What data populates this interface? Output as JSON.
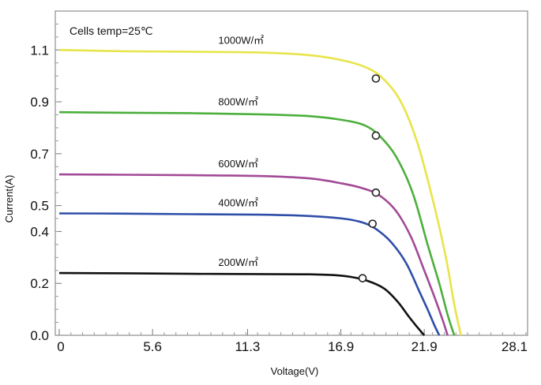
{
  "chart_data": {
    "type": "line",
    "title": "",
    "annotation": "Cells temp=25℃",
    "xlabel": "Voltage(V)",
    "ylabel": "Current(A)",
    "xlim": [
      0,
      28.1
    ],
    "ylim": [
      0,
      1.25
    ],
    "x_ticks": [
      0,
      5.6,
      11.3,
      16.9,
      21.9,
      28.1
    ],
    "x_tick_labels": [
      "0",
      "5.6",
      "11.3",
      "16.9",
      "21.9",
      "28.1"
    ],
    "y_ticks": [
      0,
      0.2,
      0.4,
      0.5,
      0.7,
      0.9,
      1.1
    ],
    "y_tick_labels": [
      "0.0",
      "0.2",
      "0.4",
      "0.5",
      "0.7",
      "0.9",
      "1.1"
    ],
    "grid": false,
    "series": [
      {
        "name": "1000W/㎡",
        "color": "#e8e44a",
        "x": [
          0,
          4,
          8,
          12,
          15,
          17,
          18.5,
          19.5,
          20.5,
          21.5,
          22.5,
          23.2,
          23.7,
          24.1
        ],
        "y": [
          1.1,
          1.095,
          1.093,
          1.09,
          1.08,
          1.06,
          1.03,
          0.985,
          0.9,
          0.74,
          0.5,
          0.3,
          0.12,
          0.0
        ],
        "mpp": {
          "x": 19.0,
          "y": 0.99
        }
      },
      {
        "name": "800W/㎡",
        "color": "#4caf3c",
        "x": [
          0,
          4,
          8,
          12,
          15,
          17,
          18.3,
          19.2,
          20.2,
          21.2,
          22.1,
          22.8,
          23.3,
          23.7
        ],
        "y": [
          0.86,
          0.858,
          0.856,
          0.852,
          0.845,
          0.83,
          0.81,
          0.77,
          0.69,
          0.55,
          0.35,
          0.2,
          0.08,
          0.0
        ],
        "mpp": {
          "x": 19.0,
          "y": 0.77
        }
      },
      {
        "name": "600W/㎡",
        "color": "#a24a96",
        "x": [
          0,
          4,
          8,
          12,
          15,
          17,
          18.3,
          19.2,
          20.2,
          21.1,
          21.9,
          22.5,
          23.0,
          23.3
        ],
        "y": [
          0.62,
          0.619,
          0.617,
          0.614,
          0.605,
          0.585,
          0.565,
          0.54,
          0.48,
          0.38,
          0.25,
          0.15,
          0.06,
          0.0
        ],
        "mpp": {
          "x": 19.0,
          "y": 0.55
        }
      },
      {
        "name": "400W/㎡",
        "color": "#2f4ea8",
        "x": [
          0,
          4,
          8,
          12,
          15,
          17,
          18.2,
          19.0,
          19.9,
          20.8,
          21.6,
          22.1,
          22.5,
          22.8
        ],
        "y": [
          0.47,
          0.469,
          0.467,
          0.465,
          0.46,
          0.45,
          0.435,
          0.41,
          0.36,
          0.28,
          0.17,
          0.1,
          0.04,
          0.0
        ],
        "mpp": {
          "x": 18.8,
          "y": 0.43
        }
      },
      {
        "name": "200W/㎡",
        "color": "#111111",
        "x": [
          0,
          4,
          8,
          12,
          15,
          16.5,
          17.5,
          18.5,
          19.5,
          20.3,
          21.0,
          21.5,
          21.9
        ],
        "y": [
          0.24,
          0.239,
          0.237,
          0.236,
          0.235,
          0.232,
          0.225,
          0.21,
          0.18,
          0.13,
          0.07,
          0.03,
          0.0
        ],
        "mpp": {
          "x": 18.2,
          "y": 0.22
        }
      }
    ]
  }
}
